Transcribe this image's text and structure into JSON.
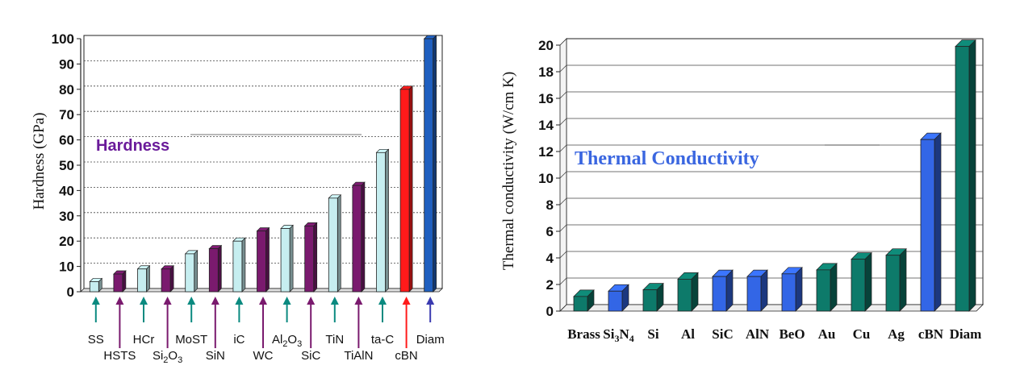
{
  "chart_data": [
    {
      "type": "bar",
      "title": "Hardness",
      "title_color": "#6a1b9a",
      "ylabel": "Hardness (GPa)",
      "xlabel": "",
      "ylim": [
        0,
        100
      ],
      "yticks": [
        0,
        10,
        20,
        30,
        40,
        50,
        60,
        70,
        80,
        90,
        100
      ],
      "grid": true,
      "categories": [
        "SS",
        "HSTS",
        "HCr",
        "Si2O3",
        "MoST",
        "SiN",
        "iC",
        "WC",
        "Al2O3",
        "SiC",
        "TiN",
        "TiAlN",
        "ta-C",
        "cBN",
        "Diam"
      ],
      "category_labels": [
        {
          "main": "SS",
          "sub": "",
          "post": ""
        },
        {
          "main": "HSTS",
          "sub": "",
          "post": ""
        },
        {
          "main": "HCr",
          "sub": "",
          "post": ""
        },
        {
          "main": "Si",
          "sub": "2",
          "post": "O",
          "sub2": "3"
        },
        {
          "main": "MoST",
          "sub": "",
          "post": ""
        },
        {
          "main": "SiN",
          "sub": "",
          "post": ""
        },
        {
          "main": "iC",
          "sub": "",
          "post": ""
        },
        {
          "main": "WC",
          "sub": "",
          "post": ""
        },
        {
          "main": "Al",
          "sub": "2",
          "post": "O",
          "sub2": "3"
        },
        {
          "main": "SiC",
          "sub": "",
          "post": ""
        },
        {
          "main": "TiN",
          "sub": "",
          "post": ""
        },
        {
          "main": "TiAlN",
          "sub": "",
          "post": ""
        },
        {
          "main": "ta-C",
          "sub": "",
          "post": ""
        },
        {
          "main": "cBN",
          "sub": "",
          "post": ""
        },
        {
          "main": "Diam",
          "sub": "",
          "post": ""
        }
      ],
      "values": [
        4,
        7,
        9,
        9,
        15,
        17,
        20,
        24,
        25,
        26,
        37,
        42,
        55,
        80,
        100
      ],
      "bar_colors": [
        "#c6eef0",
        "#7a1a6e",
        "#c6eef0",
        "#7a1a6e",
        "#c6eef0",
        "#7a1a6e",
        "#c6eef0",
        "#7a1a6e",
        "#c6eef0",
        "#7a1a6e",
        "#c6eef0",
        "#7a1a6e",
        "#c6eef0",
        "#ff1a1a",
        "#1f5fbf"
      ],
      "arrow_colors": [
        "#0b8a80",
        "#7a1a6e",
        "#0b8a80",
        "#7a1a6e",
        "#0b8a80",
        "#7a1a6e",
        "#0b8a80",
        "#7a1a6e",
        "#0b8a80",
        "#7a1a6e",
        "#0b8a80",
        "#7a1a6e",
        "#0b8a80",
        "#ff1a1a",
        "#3a3ab0"
      ],
      "label_colors": [
        "#111111",
        "#111111",
        "#111111",
        "#111111",
        "#111111",
        "#111111",
        "#111111",
        "#111111",
        "#111111",
        "#111111",
        "#111111",
        "#111111",
        "#111111",
        "#111111",
        "#3a3ab0"
      ]
    },
    {
      "type": "bar",
      "title": "Thermal Conductivity",
      "title_color": "#3a66e0",
      "ylabel": "Thermal conductivity (W/cm K)",
      "xlabel": "",
      "ylim": [
        0,
        20
      ],
      "yticks": [
        0,
        2,
        4,
        6,
        8,
        10,
        12,
        14,
        16,
        18,
        20
      ],
      "grid": true,
      "categories": [
        "Brass",
        "Si3N4",
        "Si",
        "Al",
        "SiC",
        "AlN",
        "BeO",
        "Au",
        "Cu",
        "Ag",
        "cBN",
        "Diam"
      ],
      "category_labels": [
        {
          "main": "Brass",
          "sub": "",
          "post": ""
        },
        {
          "main": "Si",
          "sub": "3",
          "post": "N",
          "sub2": "4"
        },
        {
          "main": "Si",
          "sub": "",
          "post": ""
        },
        {
          "main": "Al",
          "sub": "",
          "post": ""
        },
        {
          "main": "SiC",
          "sub": "",
          "post": ""
        },
        {
          "main": "AlN",
          "sub": "",
          "post": ""
        },
        {
          "main": "BeO",
          "sub": "",
          "post": ""
        },
        {
          "main": "Au",
          "sub": "",
          "post": ""
        },
        {
          "main": "Cu",
          "sub": "",
          "post": ""
        },
        {
          "main": "Ag",
          "sub": "",
          "post": ""
        },
        {
          "main": "cBN",
          "sub": "",
          "post": ""
        },
        {
          "main": "Diam",
          "sub": "",
          "post": ""
        }
      ],
      "values": [
        1.1,
        1.5,
        1.6,
        2.4,
        2.6,
        2.6,
        2.8,
        3.1,
        3.9,
        4.2,
        12.9,
        19.9
      ],
      "bar_colors": [
        "#0d7a6a",
        "#3366e6",
        "#0d7a6a",
        "#0d7a6a",
        "#3366e6",
        "#3366e6",
        "#3366e6",
        "#0d7a6a",
        "#0d7a6a",
        "#0d7a6a",
        "#3366e6",
        "#0d7a6a"
      ],
      "label_colors": [
        "#111111",
        "#3a66e0",
        "#111111",
        "#111111",
        "#3a66e0",
        "#3a66e0",
        "#3a66e0",
        "#111111",
        "#111111",
        "#111111",
        "#3a66e0",
        "#111111"
      ]
    }
  ]
}
